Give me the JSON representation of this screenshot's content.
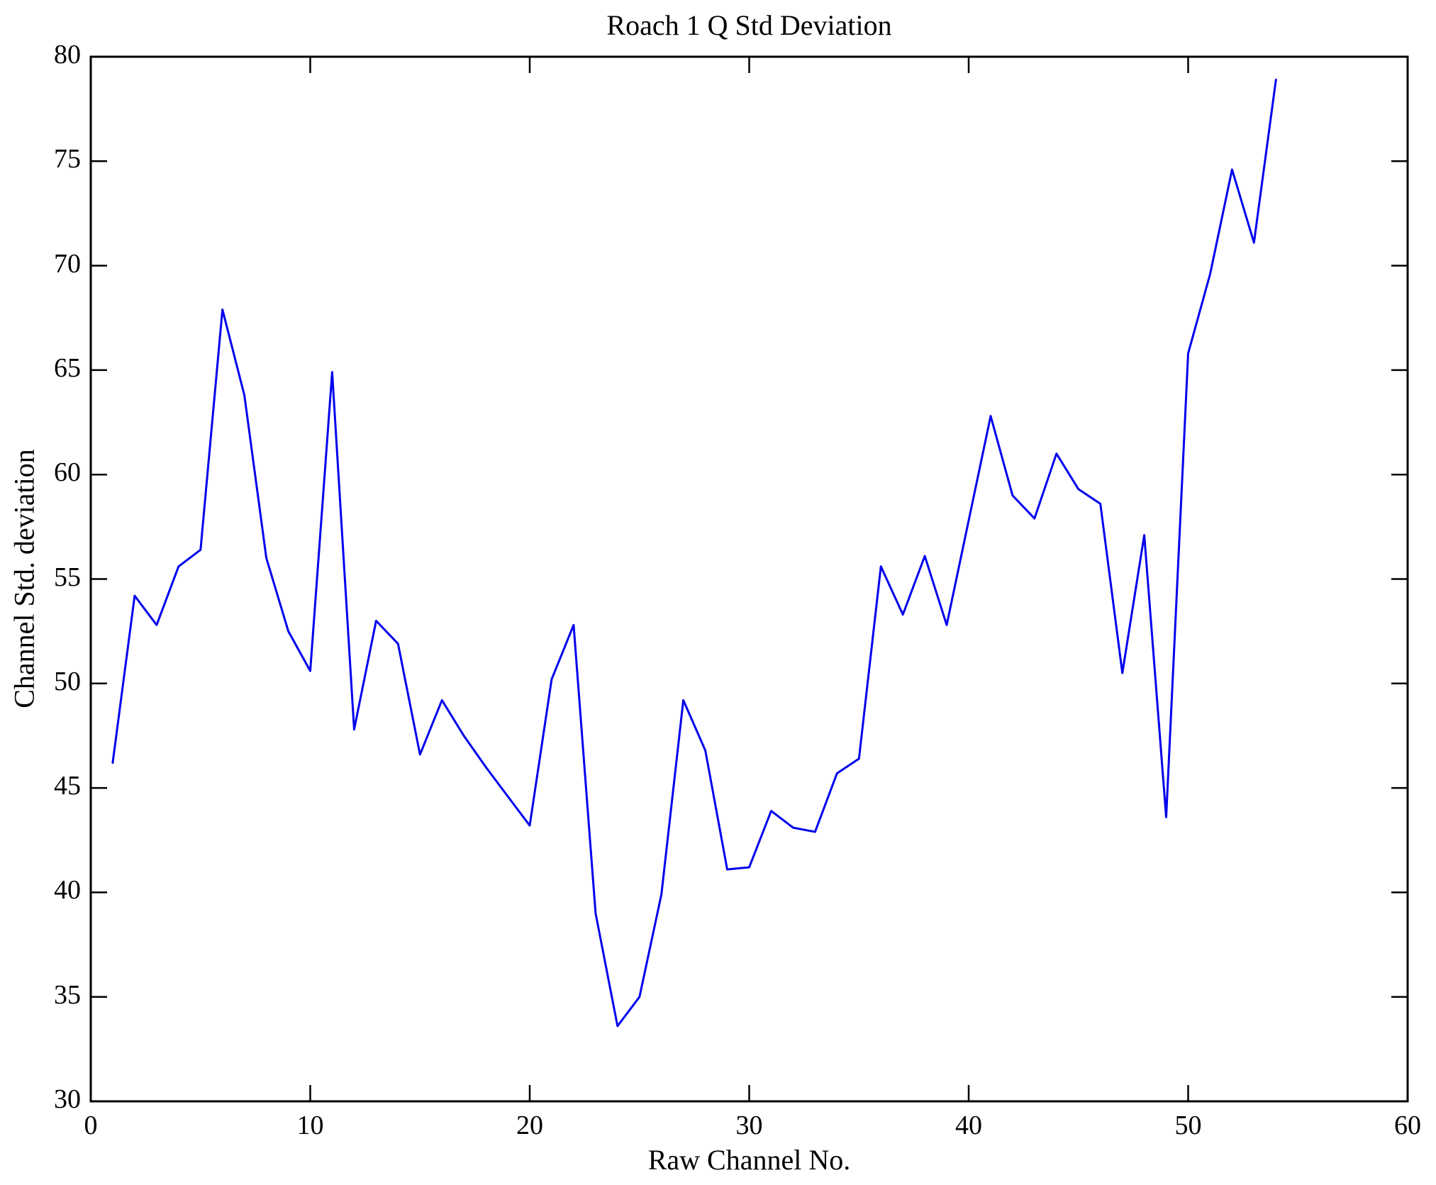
{
  "figure": {
    "title": "Roach 1 Q Std Deviation",
    "xlabel": "Raw Channel No.",
    "ylabel": "Channel Std. deviation"
  },
  "chart_data": {
    "type": "line",
    "title": "Roach 1 Q Std Deviation",
    "xlabel": "Raw Channel No.",
    "ylabel": "Channel Std. deviation",
    "xlim": [
      0,
      60
    ],
    "ylim": [
      30,
      80
    ],
    "x_ticks": [
      0,
      10,
      20,
      30,
      40,
      50,
      60
    ],
    "y_ticks": [
      30,
      35,
      40,
      45,
      50,
      55,
      60,
      65,
      70,
      75,
      80
    ],
    "grid": false,
    "legend": "none",
    "line_color": "#0000EE",
    "background": "#FFFFFF",
    "series": [
      {
        "name": "Channel Std. deviation",
        "x": [
          1,
          2,
          3,
          4,
          5,
          6,
          7,
          8,
          9,
          10,
          11,
          12,
          13,
          14,
          15,
          16,
          17,
          18,
          19,
          20,
          21,
          22,
          23,
          24,
          25,
          26,
          27,
          28,
          29,
          30,
          31,
          32,
          33,
          34,
          35,
          36,
          37,
          38,
          39,
          40,
          41,
          42,
          43,
          44,
          45,
          46,
          47,
          48,
          49,
          50,
          51,
          52,
          53,
          54
        ],
        "y": [
          46.2,
          54.2,
          52.8,
          55.6,
          56.4,
          67.9,
          63.8,
          56.0,
          52.5,
          50.6,
          64.9,
          47.8,
          53.0,
          51.9,
          46.6,
          49.2,
          47.5,
          46.0,
          44.6,
          43.2,
          50.2,
          52.8,
          39.0,
          33.6,
          35.0,
          39.9,
          49.2,
          46.8,
          41.1,
          41.2,
          43.9,
          43.1,
          42.9,
          45.7,
          46.4,
          55.6,
          53.3,
          56.1,
          52.8,
          57.8,
          62.8,
          59.0,
          57.9,
          61.0,
          59.3,
          58.6,
          50.5,
          57.1,
          43.6,
          65.8,
          69.6,
          74.6,
          71.1,
          78.9
        ]
      }
    ]
  }
}
